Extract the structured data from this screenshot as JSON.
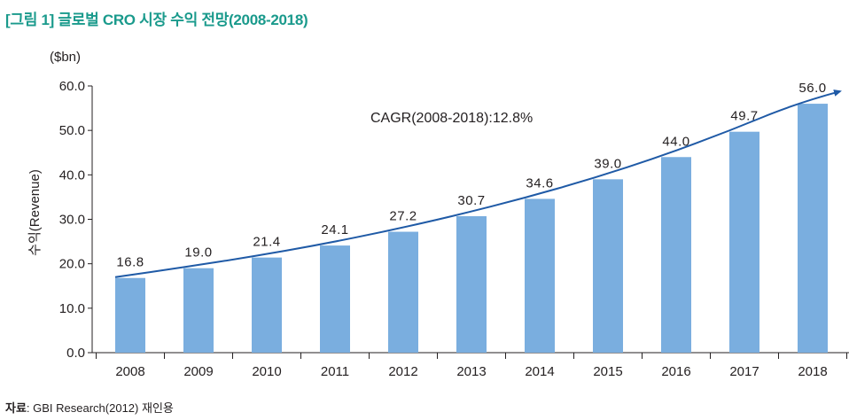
{
  "figure": {
    "title": "[그림 1] 글로벌 CRO 시장 수익 전망(2008-2018)",
    "unit": "($bn)",
    "source_label": "자료",
    "source_text": ": GBI Research(2012) 재인용"
  },
  "chart_data": {
    "type": "bar",
    "title": "[그림 1] 글로벌 CRO 시장 수익 전망(2008-2018)",
    "xlabel": "",
    "ylabel": "수익(Revenue)",
    "unit": "($bn)",
    "categories": [
      "2008",
      "2009",
      "2010",
      "2011",
      "2012",
      "2013",
      "2014",
      "2015",
      "2016",
      "2017",
      "2018"
    ],
    "values": [
      16.8,
      19.0,
      21.4,
      24.1,
      27.2,
      30.7,
      34.6,
      39.0,
      44.0,
      49.7,
      56.0
    ],
    "value_labels": [
      "16.8",
      "19.0",
      "21.4",
      "24.1",
      "27.2",
      "30.7",
      "34.6",
      "39.0",
      "44.0",
      "49.7",
      "56.0"
    ],
    "ylim": [
      0,
      60
    ],
    "yticks": [
      0,
      10,
      20,
      30,
      40,
      50,
      60
    ],
    "ytick_labels": [
      "0.0",
      "10.0",
      "20.0",
      "30.0",
      "40.0",
      "50.0",
      "60.0"
    ],
    "grid": false,
    "legend": "none",
    "annotation": "CAGR(2008-2018):12.8%",
    "trend_arrow": true,
    "colors": {
      "bar": "#7aaedf",
      "trend": "#1f5aa6",
      "axis": "#231f20",
      "title": "#1a9a8c"
    }
  }
}
